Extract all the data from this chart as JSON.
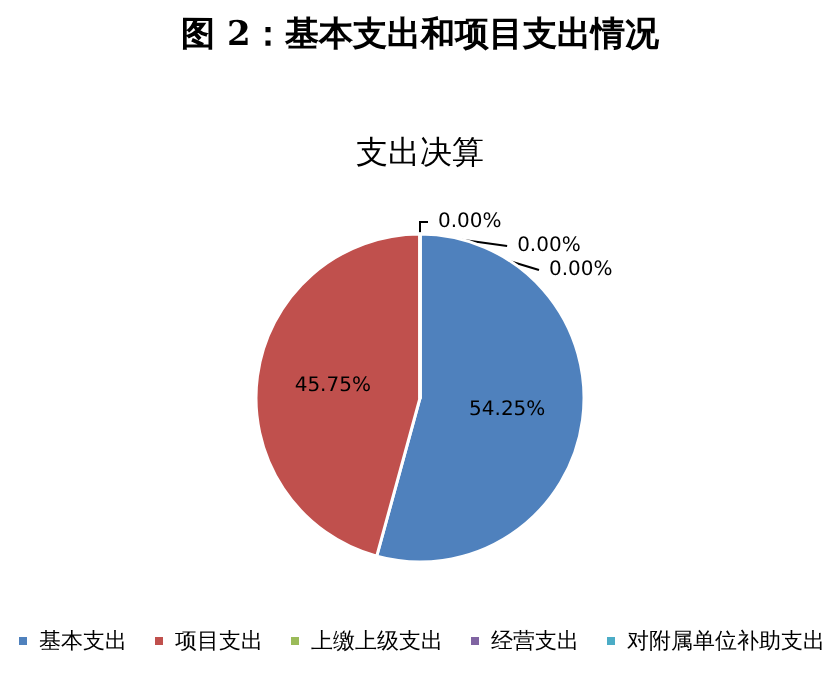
{
  "chart_data": {
    "type": "pie",
    "title": "图 2：基本支出和项目支出情况",
    "subtitle": "支出决算",
    "categories": [
      "基本支出",
      "项目支出",
      "上缴上级支出",
      "经营支出",
      "对附属单位补助支出"
    ],
    "values": [
      54.25,
      45.75,
      0,
      0,
      0
    ],
    "value_labels": [
      "54.25%",
      "45.75%",
      "0.00%",
      "0.00%",
      "0.00%"
    ],
    "colors": [
      "#4f81bd",
      "#c0504d",
      "#9bbb59",
      "#8064a2",
      "#4bacc6"
    ],
    "legend": "bottom"
  }
}
